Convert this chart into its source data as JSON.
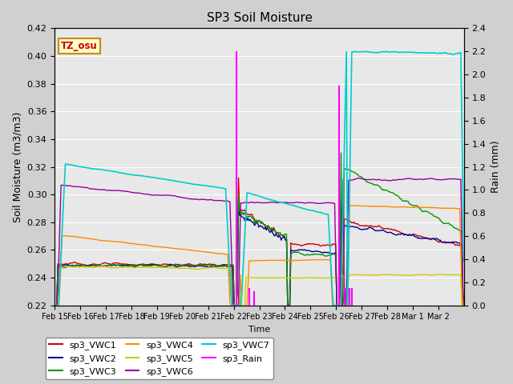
{
  "title": "SP3 Soil Moisture",
  "ylabel_left": "Soil Moisture (m3/m3)",
  "ylabel_right": "Rain (mm)",
  "xlabel": "Time",
  "ylim_left": [
    0.22,
    0.42
  ],
  "ylim_right": [
    0.0,
    2.4
  ],
  "tz_label": "TZ_osu",
  "legend_entries": [
    "sp3_VWC1",
    "sp3_VWC2",
    "sp3_VWC3",
    "sp3_VWC4",
    "sp3_VWC5",
    "sp3_VWC6",
    "sp3_VWC7",
    "sp3_Rain"
  ],
  "line_colors": {
    "VWC1": "#cc0000",
    "VWC2": "#000099",
    "VWC3": "#009900",
    "VWC4": "#ff8800",
    "VWC5": "#cccc00",
    "VWC6": "#990099",
    "VWC7": "#00cccc",
    "Rain": "#ff00ff"
  },
  "tick_labels": [
    "Feb 15",
    "Feb 16",
    "Feb 17",
    "Feb 18",
    "Feb 19",
    "Feb 20",
    "Feb 21",
    "Feb 22",
    "Feb 23",
    "Feb 24",
    "Feb 25",
    "Feb 26",
    "Feb 27",
    "Feb 28",
    "Mar 1",
    "Mar 2"
  ],
  "yticks_left": [
    0.22,
    0.24,
    0.26,
    0.28,
    0.3,
    0.32,
    0.34,
    0.36,
    0.38,
    0.4,
    0.42
  ],
  "yticks_right": [
    0.0,
    0.2,
    0.4,
    0.6,
    0.8,
    1.0,
    1.2,
    1.4,
    1.6,
    1.8,
    2.0,
    2.2,
    2.4
  ],
  "fig_bg": "#d0d0d0",
  "plot_bg": "#e8e8e8"
}
